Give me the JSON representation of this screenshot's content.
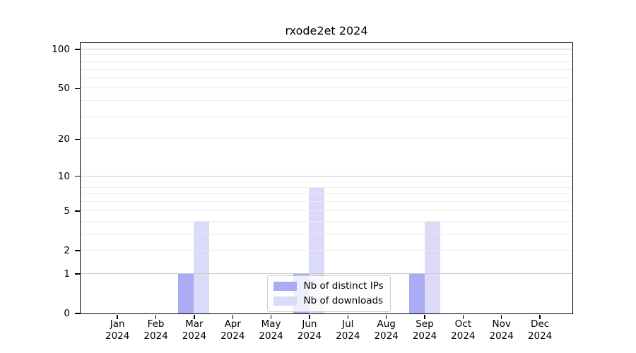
{
  "chart_data": {
    "type": "bar",
    "title": "rxode2et 2024",
    "categories": [
      "Jan\n2024",
      "Feb\n2024",
      "Mar\n2024",
      "Apr\n2024",
      "May\n2024",
      "Jun\n2024",
      "Jul\n2024",
      "Aug\n2024",
      "Sep\n2024",
      "Oct\n2024",
      "Nov\n2024",
      "Dec\n2024"
    ],
    "series": [
      {
        "key": "distinct-ips",
        "name": "Nb of distinct IPs",
        "color": "#ababf6",
        "values": [
          0,
          0,
          1,
          0,
          0,
          1,
          0,
          0,
          1,
          0,
          0,
          0
        ]
      },
      {
        "key": "downloads",
        "name": "Nb of downloads",
        "color": "#dbdaf8",
        "values": [
          0,
          0,
          4,
          0,
          0,
          8,
          0,
          0,
          4,
          0,
          0,
          0
        ]
      }
    ],
    "xlabel": "",
    "ylabel": "",
    "y_scale": "log1p",
    "y_ticks": [
      0,
      1,
      2,
      5,
      10,
      20,
      50,
      100
    ],
    "ylim": [
      0,
      110
    ],
    "grid": {
      "major_values": [
        1,
        10,
        100
      ],
      "minor_values": [
        2,
        3,
        4,
        5,
        6,
        7,
        8,
        9,
        20,
        30,
        40,
        50,
        60,
        70,
        80,
        90
      ],
      "major_color": "#c9c9c9",
      "minor_color": "#ececec"
    },
    "axis_color": "#000000",
    "legend_position": "inside-bottom-center"
  }
}
